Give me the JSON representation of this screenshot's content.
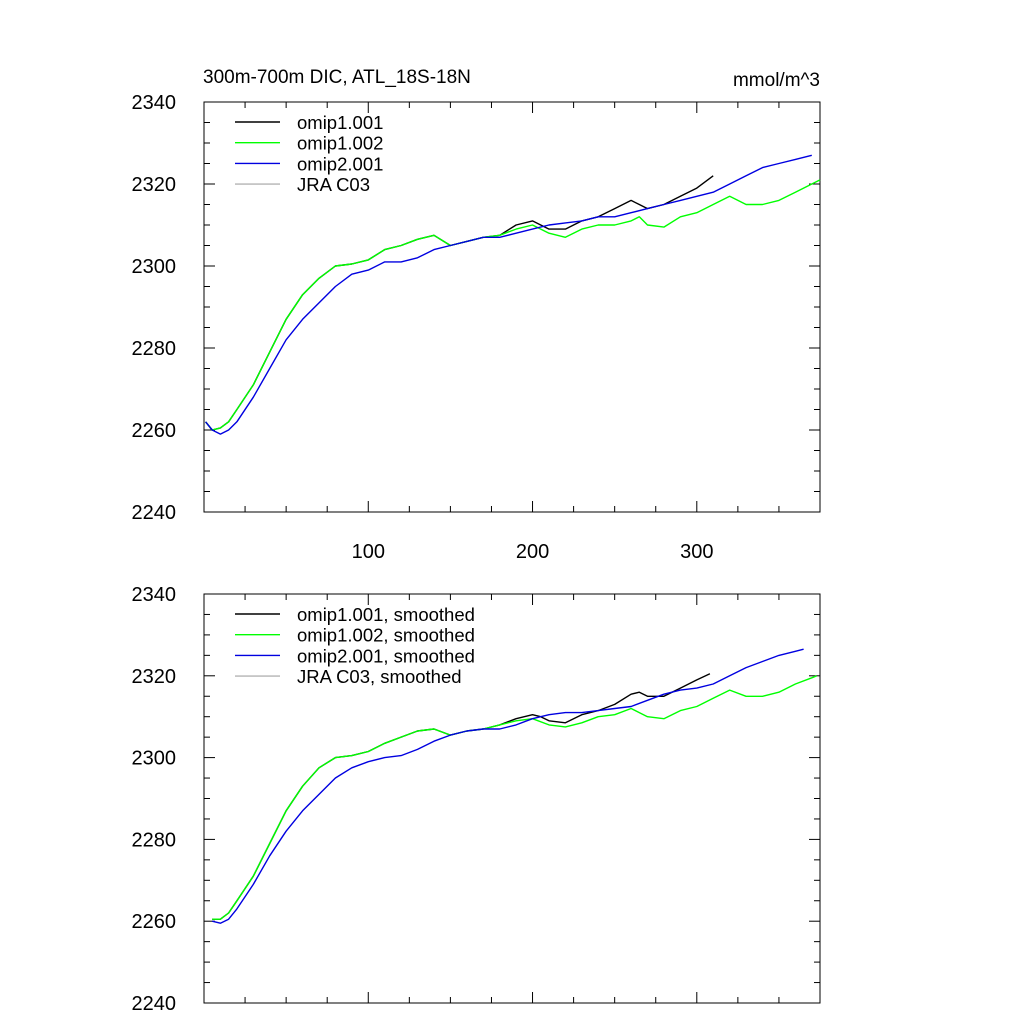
{
  "header": {
    "title": "300m-700m DIC, ATL_18S-18N",
    "units": "mmol/m^3"
  },
  "chart_data": [
    {
      "type": "line",
      "xlim": [
        0,
        375
      ],
      "ylim": [
        2240,
        2340
      ],
      "x_ticks": [
        100,
        200,
        300
      ],
      "x_tick_labels": [
        "100",
        "200",
        "300"
      ],
      "y_ticks": [
        2240,
        2260,
        2280,
        2300,
        2320,
        2340
      ],
      "y_tick_labels": [
        "2240",
        "2260",
        "2280",
        "2300",
        "2320",
        "2340"
      ],
      "grid": false,
      "legend": "top-left",
      "series": [
        {
          "name": "omip1.001",
          "color": "#000000",
          "x": [
            1,
            5,
            10,
            15,
            20,
            30,
            40,
            50,
            60,
            70,
            80,
            90,
            100,
            110,
            120,
            130,
            140,
            150,
            160,
            170,
            180,
            190,
            200,
            205,
            210,
            220,
            230,
            240,
            250,
            260,
            265,
            270,
            280,
            290,
            300,
            310
          ],
          "y": [
            2262,
            2260,
            2260.5,
            2262,
            2265,
            2271,
            2279,
            2287,
            2293,
            2297,
            2300,
            2300.5,
            2301.5,
            2304,
            2305,
            2306.5,
            2307.5,
            2305,
            2306,
            2307,
            2307.5,
            2310,
            2311,
            2310,
            2309,
            2309,
            2311,
            2312,
            2314,
            2316,
            2315,
            2314,
            2315,
            2317,
            2319,
            2322
          ]
        },
        {
          "name": "omip1.002",
          "color": "#00ff00",
          "x": [
            1,
            5,
            10,
            15,
            20,
            30,
            40,
            50,
            60,
            70,
            80,
            90,
            100,
            110,
            120,
            130,
            140,
            150,
            160,
            170,
            180,
            190,
            200,
            210,
            220,
            230,
            240,
            250,
            260,
            265,
            270,
            280,
            290,
            300,
            310,
            320,
            330,
            340,
            350,
            360,
            370,
            375
          ],
          "y": [
            2262,
            2260,
            2260.5,
            2262,
            2265,
            2271,
            2279,
            2287,
            2293,
            2297,
            2300,
            2300.5,
            2301.5,
            2304,
            2305,
            2306.5,
            2307.5,
            2305,
            2306,
            2307,
            2307.5,
            2309,
            2310,
            2308,
            2307,
            2309,
            2310,
            2310,
            2311,
            2312,
            2310,
            2309.5,
            2312,
            2313,
            2315,
            2317,
            2315,
            2315,
            2316,
            2318,
            2320,
            2321
          ]
        },
        {
          "name": "omip2.001",
          "color": "#0000e0",
          "x": [
            1,
            5,
            10,
            15,
            20,
            30,
            40,
            50,
            60,
            70,
            80,
            90,
            100,
            110,
            120,
            130,
            140,
            150,
            160,
            170,
            180,
            190,
            200,
            210,
            220,
            230,
            240,
            250,
            260,
            270,
            280,
            290,
            300,
            310,
            320,
            330,
            340,
            350,
            360,
            370
          ],
          "y": [
            2262,
            2260,
            2259,
            2260,
            2262,
            2268,
            2275,
            2282,
            2287,
            2291,
            2295,
            2298,
            2299,
            2301,
            2301,
            2302,
            2304,
            2305,
            2306,
            2307,
            2307,
            2308,
            2309,
            2310,
            2310.5,
            2311,
            2312,
            2312,
            2313,
            2314,
            2315,
            2316,
            2317,
            2318,
            2320,
            2322,
            2324,
            2325,
            2326,
            2327
          ]
        },
        {
          "name": "JRA C03",
          "color": "#b4b4b4",
          "x": [],
          "y": []
        }
      ]
    },
    {
      "type": "line",
      "xlim": [
        0,
        375
      ],
      "ylim": [
        2240,
        2340
      ],
      "x_ticks": [
        100,
        200,
        300
      ],
      "y_ticks": [
        2240,
        2260,
        2280,
        2300,
        2320,
        2340
      ],
      "y_tick_labels": [
        "2240",
        "2260",
        "2280",
        "2300",
        "2320",
        "2340"
      ],
      "grid": false,
      "legend": "top-left",
      "series": [
        {
          "name": "omip1.001, smoothed",
          "color": "#000000",
          "x": [
            5,
            10,
            15,
            20,
            30,
            40,
            50,
            60,
            70,
            80,
            90,
            100,
            110,
            120,
            130,
            140,
            150,
            160,
            170,
            180,
            190,
            200,
            205,
            210,
            220,
            230,
            240,
            250,
            260,
            265,
            270,
            280,
            290,
            300,
            308
          ],
          "y": [
            2260.5,
            2260.5,
            2262,
            2265,
            2271,
            2279,
            2287,
            2293,
            2297.5,
            2300,
            2300.5,
            2301.5,
            2303.5,
            2305,
            2306.5,
            2307,
            2305.5,
            2306.5,
            2307,
            2308,
            2309.5,
            2310.5,
            2310,
            2309,
            2308.5,
            2310.5,
            2311.5,
            2313,
            2315.5,
            2316,
            2315,
            2315,
            2317,
            2319,
            2320.5
          ]
        },
        {
          "name": "omip1.002, smoothed",
          "color": "#00ff00",
          "x": [
            5,
            10,
            15,
            20,
            30,
            40,
            50,
            60,
            70,
            80,
            90,
            100,
            110,
            120,
            130,
            140,
            150,
            160,
            170,
            180,
            190,
            200,
            210,
            220,
            230,
            240,
            250,
            260,
            265,
            270,
            280,
            290,
            300,
            310,
            320,
            330,
            340,
            350,
            360,
            370,
            373
          ],
          "y": [
            2260.5,
            2260.5,
            2262,
            2265,
            2271,
            2279,
            2287,
            2293,
            2297.5,
            2300,
            2300.5,
            2301.5,
            2303.5,
            2305,
            2306.5,
            2307,
            2305.5,
            2306.5,
            2307,
            2308,
            2309,
            2309.5,
            2308,
            2307.5,
            2308.5,
            2310,
            2310.5,
            2312,
            2311,
            2310,
            2309.5,
            2311.5,
            2312.5,
            2314.5,
            2316.5,
            2315,
            2315,
            2316,
            2318,
            2319.5,
            2320
          ]
        },
        {
          "name": "omip2.001, smoothed",
          "color": "#0000e0",
          "x": [
            5,
            10,
            15,
            20,
            30,
            40,
            50,
            60,
            70,
            80,
            90,
            100,
            110,
            120,
            130,
            140,
            150,
            160,
            170,
            180,
            190,
            200,
            210,
            220,
            230,
            240,
            250,
            260,
            270,
            280,
            290,
            300,
            310,
            320,
            330,
            340,
            350,
            360,
            365
          ],
          "y": [
            2260,
            2259.5,
            2260.5,
            2263,
            2269,
            2276,
            2282,
            2287,
            2291,
            2295,
            2297.5,
            2299,
            2300,
            2300.5,
            2302,
            2304,
            2305.5,
            2306.5,
            2307,
            2307,
            2308,
            2309.5,
            2310.5,
            2311,
            2311,
            2311.5,
            2312,
            2312.5,
            2314,
            2315.5,
            2316.5,
            2317,
            2318,
            2320,
            2322,
            2323.5,
            2325,
            2326,
            2326.5
          ]
        },
        {
          "name": "JRA C03, smoothed",
          "color": "#b4b4b4",
          "x": [],
          "y": []
        }
      ]
    }
  ]
}
